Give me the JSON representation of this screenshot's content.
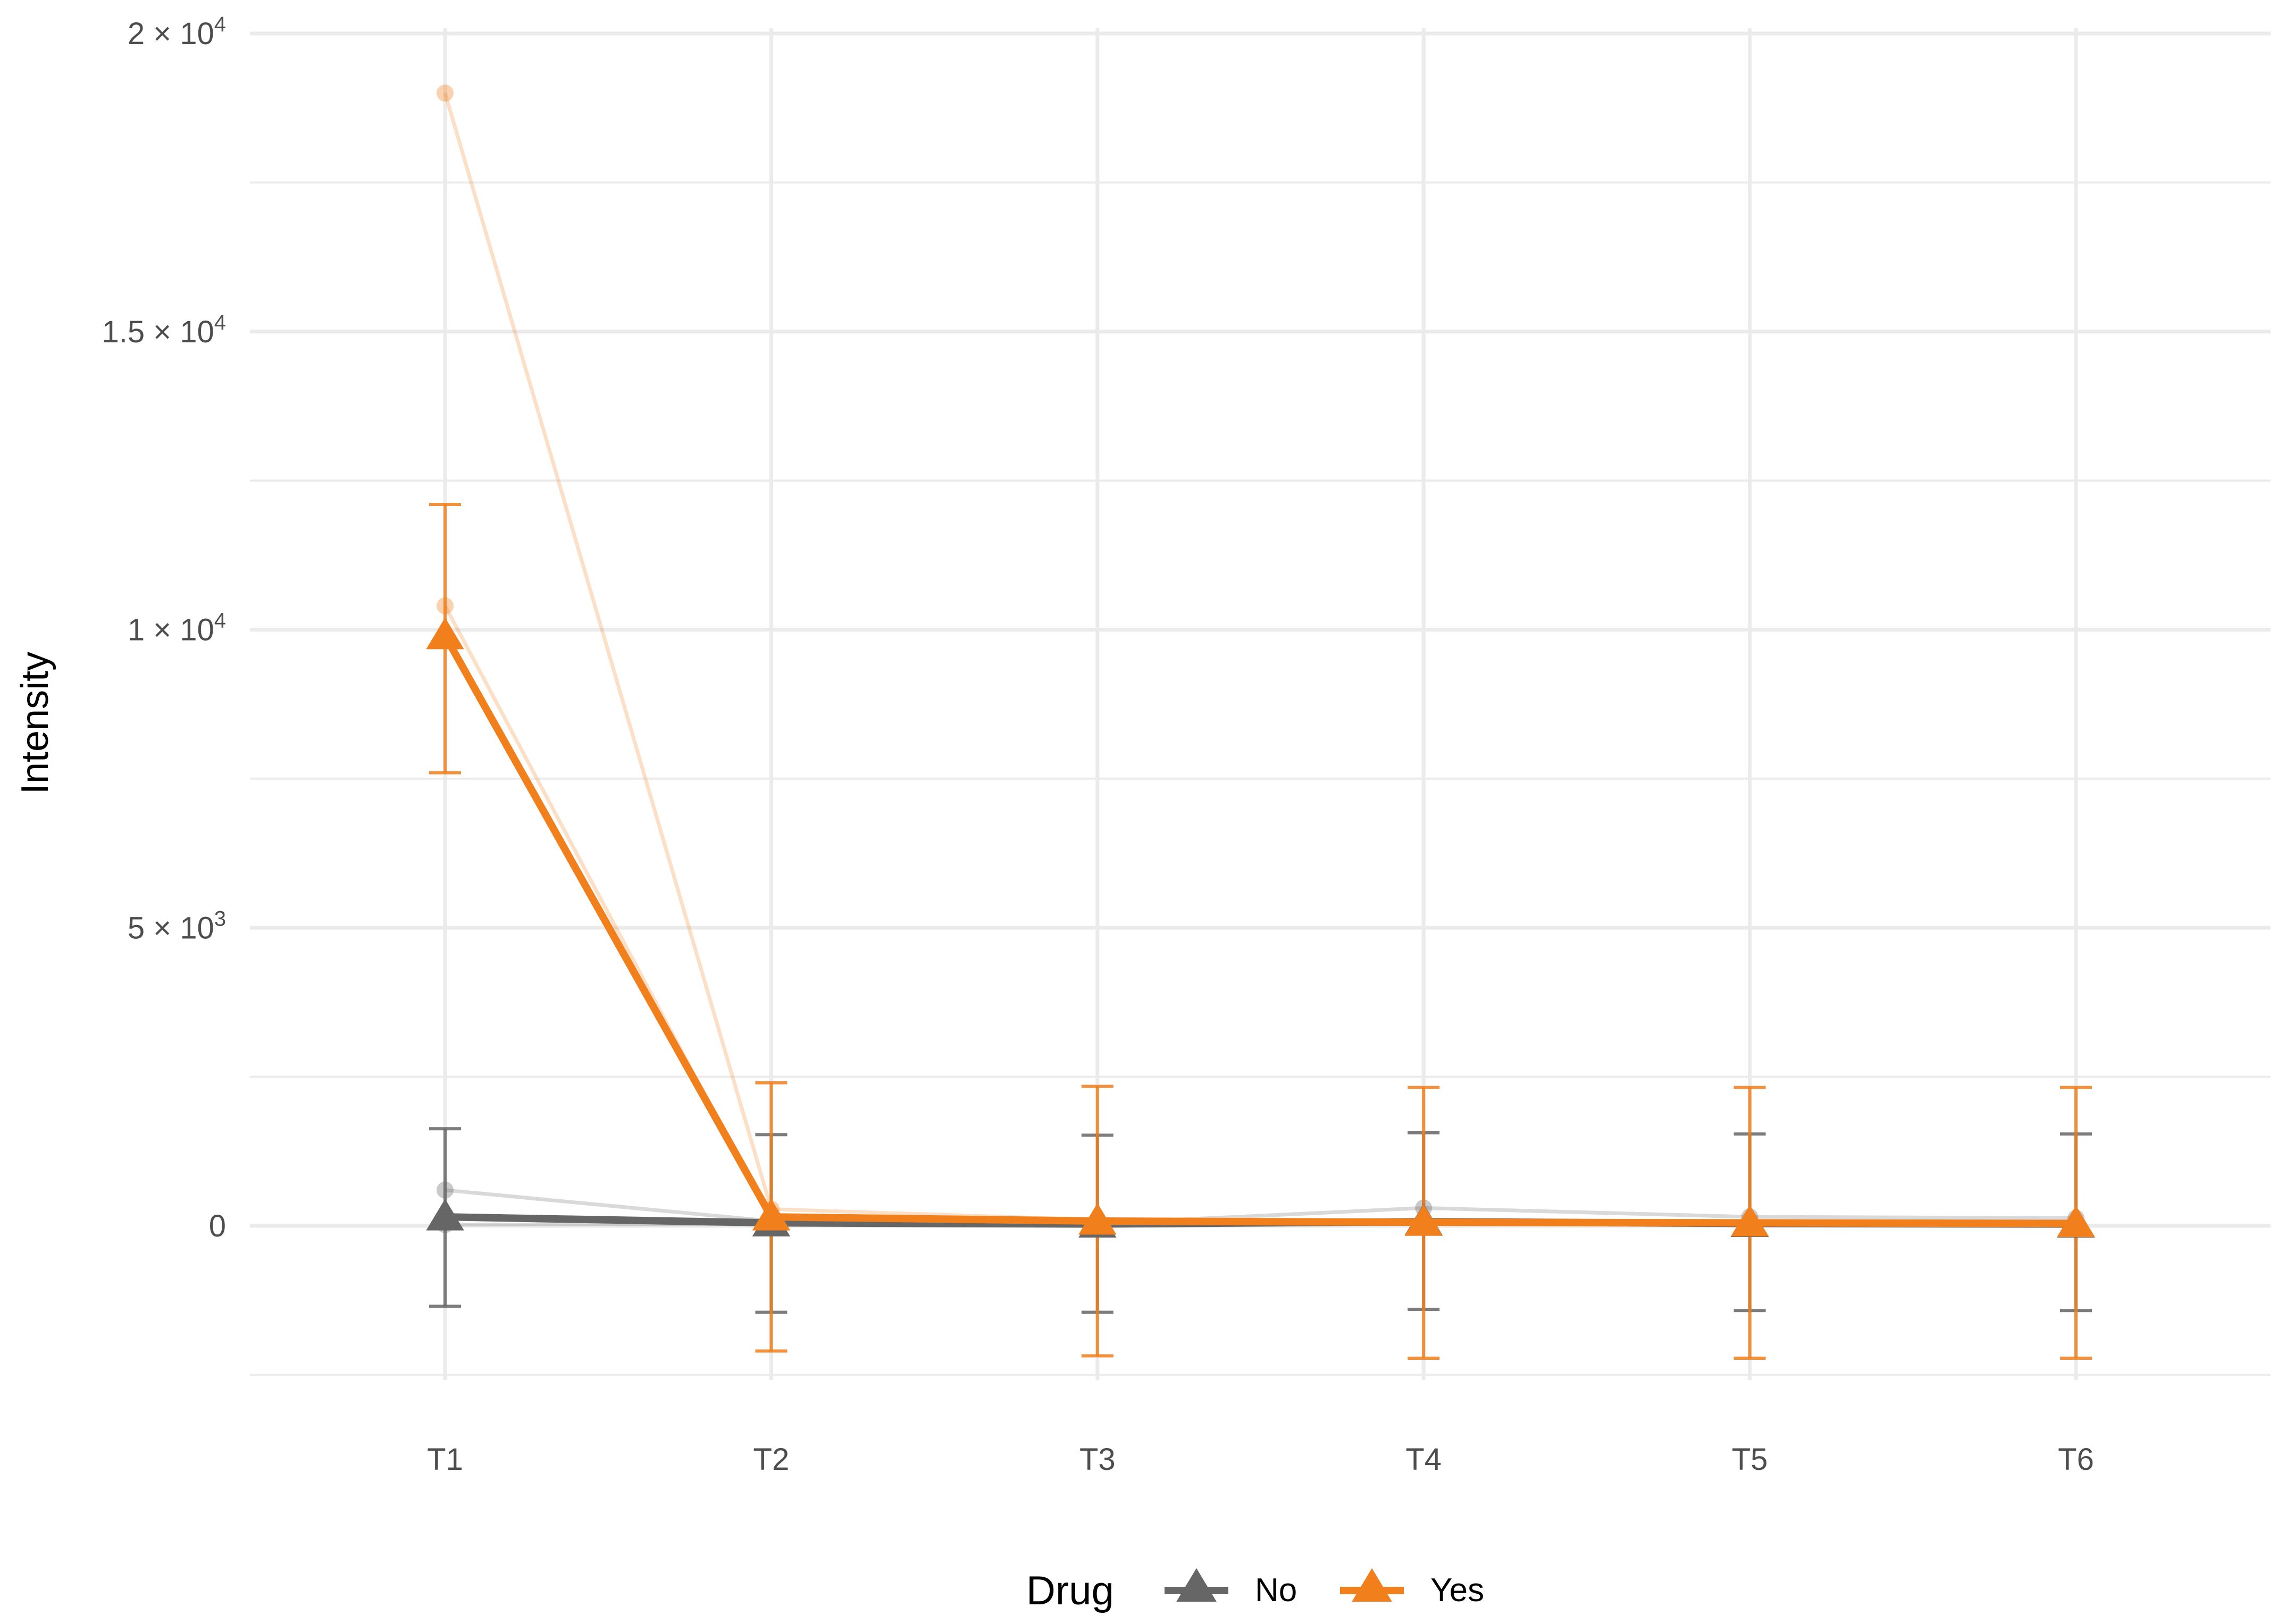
{
  "chart_data": {
    "type": "line",
    "title": "",
    "xlabel": "",
    "ylabel": "Intensity",
    "categories": [
      "T1",
      "T2",
      "T3",
      "T4",
      "T5",
      "T6"
    ],
    "ylim": [
      -2500,
      20000
    ],
    "yticks": [
      {
        "value": 0,
        "mant": "0",
        "exp": ""
      },
      {
        "value": 5000,
        "mant": "5 × 10",
        "exp": "3"
      },
      {
        "value": 10000,
        "mant": "1 × 10",
        "exp": "4"
      },
      {
        "value": 15000,
        "mant": "1.5 × 10",
        "exp": "4"
      },
      {
        "value": 20000,
        "mant": "2 × 10",
        "exp": "4"
      }
    ],
    "grid": true,
    "legend": {
      "title": "Drug",
      "position": "bottom"
    },
    "series": [
      {
        "name": "No",
        "color": "#666666",
        "mean": [
          150,
          50,
          30,
          70,
          40,
          30
        ],
        "error_low": [
          -1350,
          -1450,
          -1450,
          -1400,
          -1420,
          -1420
        ],
        "error_high": [
          1630,
          1530,
          1520,
          1560,
          1540,
          1540
        ],
        "individuals": [
          [
            600,
            80,
            40,
            300,
            150,
            130
          ],
          [
            20,
            30,
            10,
            40,
            30,
            20
          ]
        ]
      },
      {
        "name": "Yes",
        "color": "#f07f1c",
        "mean": [
          9900,
          150,
          80,
          60,
          50,
          40
        ],
        "error_low": [
          7600,
          -2100,
          -2180,
          -2220,
          -2220,
          -2220
        ],
        "error_high": [
          12100,
          2400,
          2340,
          2320,
          2320,
          2320
        ],
        "individuals": [
          [
            19000,
            280,
            100,
            60,
            50,
            40
          ],
          [
            10400,
            100,
            60,
            50,
            40,
            30
          ]
        ]
      }
    ]
  }
}
